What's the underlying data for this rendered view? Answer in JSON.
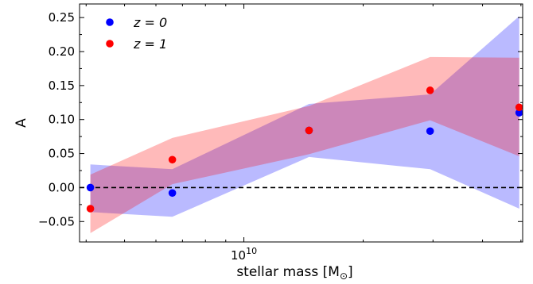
{
  "chart_data": {
    "type": "scatter",
    "xlabel": "stellar mass [M",
    "xlabel_sub": "⊙",
    "xlabel_close": "]",
    "ylabel": "A",
    "x_scale": "log",
    "xlim": [
      3850000000.0,
      50500000000.0
    ],
    "ylim": [
      -0.08,
      0.27
    ],
    "x_tick_labels": [
      {
        "value": 10000000000.0,
        "base": "10",
        "exp": "10"
      }
    ],
    "y_ticks": [
      -0.05,
      0.0,
      0.05,
      0.1,
      0.15,
      0.2,
      0.25
    ],
    "y_tick_labels": [
      "−0.05",
      "0.00",
      "0.05",
      "0.10",
      "0.15",
      "0.20",
      "0.25"
    ],
    "grid": false,
    "legend_position": "top-left",
    "reference_line": {
      "y": 0,
      "style": "dashed",
      "color": "#000000"
    },
    "series": [
      {
        "name": "z = 0",
        "color": "#0000ff",
        "band_color": "#0000ff",
        "band_opacity": 0.27,
        "x": [
          4100000000.0,
          6600000000.0,
          14600000000.0,
          29500000000.0,
          49500000000.0
        ],
        "y": [
          0.0,
          -0.008,
          0.084,
          0.083,
          0.11
        ],
        "band": {
          "x": [
            4100000000.0,
            6600000000.0,
            14600000000.0,
            29500000000.0,
            49500000000.0
          ],
          "low": [
            -0.036,
            -0.043,
            0.045,
            0.027,
            -0.031
          ],
          "high": [
            0.034,
            0.027,
            0.123,
            0.137,
            0.252
          ]
        }
      },
      {
        "name": "z = 1",
        "color": "#ff0000",
        "band_color": "#ff0000",
        "band_opacity": 0.27,
        "x": [
          4100000000.0,
          6600000000.0,
          14600000000.0,
          29500000000.0,
          49500000000.0
        ],
        "y": [
          -0.031,
          0.041,
          0.084,
          0.143,
          0.118
        ],
        "band": {
          "x": [
            4100000000.0,
            6600000000.0,
            14600000000.0,
            29500000000.0,
            49500000000.0
          ],
          "low": [
            -0.067,
            0.005,
            0.049,
            0.099,
            0.046
          ],
          "high": [
            0.019,
            0.073,
            0.12,
            0.192,
            0.191
          ]
        }
      }
    ]
  }
}
